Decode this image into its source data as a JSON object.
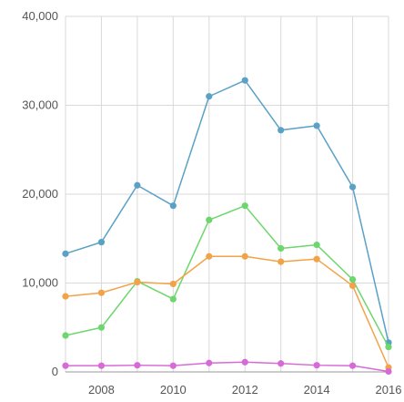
{
  "chart_data": {
    "type": "line",
    "title": "",
    "xlabel": "",
    "ylabel": "",
    "x": [
      2007,
      2008,
      2009,
      2010,
      2011,
      2012,
      2013,
      2014,
      2015,
      2016
    ],
    "xlim": [
      2007,
      2016
    ],
    "ylim": [
      0,
      40000
    ],
    "x_ticks": [
      2008,
      2010,
      2012,
      2014,
      2016
    ],
    "x_tick_labels": [
      "2008",
      "2010",
      "2012",
      "2014",
      "2016"
    ],
    "y_ticks": [
      0,
      10000,
      20000,
      30000,
      40000
    ],
    "y_tick_labels": [
      "0",
      "10,000",
      "20,000",
      "30,000",
      "40,000"
    ],
    "grid": true,
    "legend": "none",
    "series": [
      {
        "color": "#5aa1c6",
        "values": [
          13300,
          14600,
          21000,
          18700,
          31000,
          32800,
          27200,
          27700,
          20800,
          3300
        ]
      },
      {
        "color": "#6dd66d",
        "values": [
          4100,
          5000,
          10200,
          8200,
          17100,
          18700,
          13900,
          14300,
          10400,
          2800
        ]
      },
      {
        "color": "#f2a349",
        "values": [
          8500,
          8900,
          10100,
          9900,
          13000,
          13000,
          12400,
          12700,
          9700,
          500
        ]
      },
      {
        "color": "#d76ad7",
        "values": [
          700,
          700,
          750,
          700,
          1000,
          1100,
          950,
          750,
          700,
          50
        ]
      }
    ]
  }
}
